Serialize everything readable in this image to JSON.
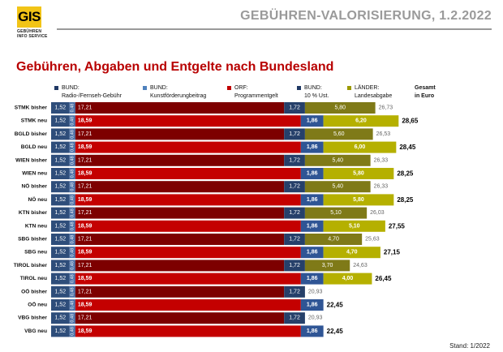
{
  "header": {
    "logo": "GIS",
    "logo_sub1": "GEBÜHREN",
    "logo_sub2": "INFO SERVICE",
    "title": "GEBÜHREN-VALORISIERUNG, 1.2.2022"
  },
  "legend": [
    {
      "line1": "BUND:",
      "line2": "Radio-/Fernseh-Gebühr",
      "color": "#1f3864"
    },
    {
      "line1": "BUND:",
      "line2": "Kunstförderungbeitrag",
      "color": "#4f81bd"
    },
    {
      "line1": "ORF:",
      "line2": "Programmentgelt",
      "color": "#c00000"
    },
    {
      "line1": "BUND:",
      "line2": "10 % Ust.",
      "color": "#1f3864"
    },
    {
      "line1": "LÄNDER:",
      "line2": "Landesabgabe",
      "color": "#9c9a00"
    }
  ],
  "legend_total": {
    "line1": "Gesamt",
    "line2": "in Euro"
  },
  "footer": "Stand: 1/2022",
  "colors": {
    "radio": "#2e4d7a",
    "kunst": "#4a6fa6",
    "orf_old": "#7d0000",
    "orf_new": "#c40000",
    "ust_old": "#26406a",
    "ust_new": "#2f5595",
    "land_old": "#7f7a18",
    "land_new": "#b5b000"
  },
  "chart_data": {
    "type": "bar",
    "stacked": true,
    "orientation": "horizontal",
    "title": "Gebühren, Abgaben und Entgelte nach Bundesland",
    "series_names": [
      "BUND: Radio-/Fernseh-Gebühr",
      "BUND: Kunstförderungbeitrag",
      "ORF: Programmentgelt",
      "BUND: 10 % Ust.",
      "LÄNDER: Landesabgabe"
    ],
    "rows": [
      {
        "label": "STMK bisher",
        "status": "old",
        "radio": 1.52,
        "kunst": 0.48,
        "orf": 17.21,
        "ust": 1.72,
        "land": 5.8,
        "total": 26.73,
        "land_label": "5,80",
        "total_label": "26,73"
      },
      {
        "label": "STMK neu",
        "status": "new",
        "radio": 1.52,
        "kunst": 0.48,
        "orf": 18.59,
        "ust": 1.86,
        "land": 6.2,
        "total": 28.65,
        "land_label": "6,20",
        "total_label": "28,65"
      },
      {
        "label": "BGLD bisher",
        "status": "old",
        "radio": 1.52,
        "kunst": 0.48,
        "orf": 17.21,
        "ust": 1.72,
        "land": 5.6,
        "total": 26.53,
        "land_label": "5,60",
        "total_label": "26,53"
      },
      {
        "label": "BGLD neu",
        "status": "new",
        "radio": 1.52,
        "kunst": 0.48,
        "orf": 18.59,
        "ust": 1.86,
        "land": 6.0,
        "total": 28.45,
        "land_label": "6,00",
        "total_label": "28,45"
      },
      {
        "label": "WIEN bisher",
        "status": "old",
        "radio": 1.52,
        "kunst": 0.48,
        "orf": 17.21,
        "ust": 1.72,
        "land": 5.4,
        "total": 26.33,
        "land_label": "5,40",
        "total_label": "26,33"
      },
      {
        "label": "WIEN neu",
        "status": "new",
        "radio": 1.52,
        "kunst": 0.48,
        "orf": 18.59,
        "ust": 1.86,
        "land": 5.8,
        "total": 28.25,
        "land_label": "5,80",
        "total_label": "28,25"
      },
      {
        "label": "NÖ bisher",
        "status": "old",
        "radio": 1.52,
        "kunst": 0.48,
        "orf": 17.21,
        "ust": 1.72,
        "land": 5.4,
        "total": 26.33,
        "land_label": "5,40",
        "total_label": "26,33"
      },
      {
        "label": "NÖ neu",
        "status": "new",
        "radio": 1.52,
        "kunst": 0.48,
        "orf": 18.59,
        "ust": 1.86,
        "land": 5.8,
        "total": 28.25,
        "land_label": "5,80",
        "total_label": "28,25"
      },
      {
        "label": "KTN bisher",
        "status": "old",
        "radio": 1.52,
        "kunst": 0.48,
        "orf": 17.21,
        "ust": 1.72,
        "land": 5.1,
        "total": 26.03,
        "land_label": "5,10",
        "total_label": "26,03"
      },
      {
        "label": "KTN neu",
        "status": "new",
        "radio": 1.52,
        "kunst": 0.48,
        "orf": 18.59,
        "ust": 1.86,
        "land": 5.1,
        "total": 27.55,
        "land_label": "5,10",
        "total_label": "27,55"
      },
      {
        "label": "SBG bisher",
        "status": "old",
        "radio": 1.52,
        "kunst": 0.48,
        "orf": 17.21,
        "ust": 1.72,
        "land": 4.7,
        "total": 25.63,
        "land_label": "4,70",
        "total_label": "25,63"
      },
      {
        "label": "SBG neu",
        "status": "new",
        "radio": 1.52,
        "kunst": 0.48,
        "orf": 18.59,
        "ust": 1.86,
        "land": 4.7,
        "total": 27.15,
        "land_label": "4,70",
        "total_label": "27,15"
      },
      {
        "label": "TIROL bisher",
        "status": "old",
        "radio": 1.52,
        "kunst": 0.48,
        "orf": 17.21,
        "ust": 1.72,
        "land": 3.7,
        "total": 24.63,
        "land_label": "3,70",
        "total_label": "24,63"
      },
      {
        "label": "TIROL neu",
        "status": "new",
        "radio": 1.52,
        "kunst": 0.48,
        "orf": 18.59,
        "ust": 1.86,
        "land": 4.0,
        "total": 26.45,
        "land_label": "4,00",
        "total_label": "26,45"
      },
      {
        "label": "OÖ bisher",
        "status": "old",
        "radio": 1.52,
        "kunst": 0.48,
        "orf": 17.21,
        "ust": 1.72,
        "land": 0,
        "total": 20.93,
        "land_label": "",
        "total_label": "20,93"
      },
      {
        "label": "OÖ neu",
        "status": "new",
        "radio": 1.52,
        "kunst": 0.48,
        "orf": 18.59,
        "ust": 1.86,
        "land": 0,
        "total": 22.45,
        "land_label": "",
        "total_label": "22,45"
      },
      {
        "label": "VBG bisher",
        "status": "old",
        "radio": 1.52,
        "kunst": 0.48,
        "orf": 17.21,
        "ust": 1.72,
        "land": 0,
        "total": 20.93,
        "land_label": "",
        "total_label": "20,93"
      },
      {
        "label": "VBG neu",
        "status": "new",
        "radio": 1.52,
        "kunst": 0.48,
        "orf": 18.59,
        "ust": 1.86,
        "land": 0,
        "total": 22.45,
        "land_label": "",
        "total_label": "22,45"
      }
    ],
    "fixed_labels": {
      "radio": "1,52",
      "kunst": "0,48",
      "orf_old": "17,21",
      "orf_new": "18,59",
      "ust_old": "1,72",
      "ust_new": "1,86"
    }
  }
}
